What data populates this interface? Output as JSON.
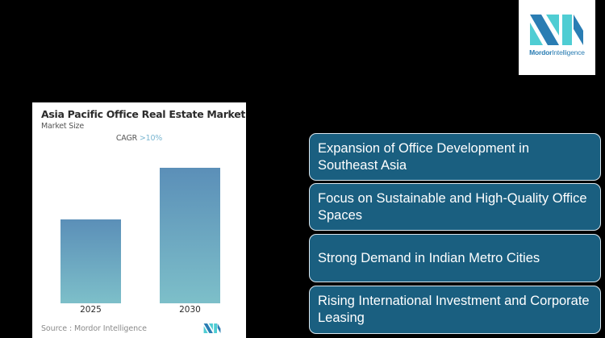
{
  "chart_card": {
    "title": "Asia Pacific Office Real Estate Market",
    "subtitle": "Market Size",
    "cagr_label": "CAGR",
    "cagr_value": ">10%",
    "source": "Source :  Mordor Intelligence"
  },
  "chart_data": {
    "type": "bar",
    "title": "Asia Pacific Office Real Estate Market",
    "subtitle": "Market Size",
    "annotation": "CAGR >10%",
    "categories": [
      "2025",
      "2030"
    ],
    "values": [
      62,
      100
    ],
    "value_note": "relative bar heights (no axis shown)",
    "xlabel": "",
    "ylabel": "",
    "grid": false,
    "legend": "none",
    "colors": {
      "bar_top": "#5b8fb8",
      "bar_bottom": "#7dbfc9"
    }
  },
  "logo": {
    "brand_bold": "Mordor",
    "brand_rest": "Intelligence",
    "colors": {
      "dark": "#2a7db3",
      "light": "#4fcdd3"
    }
  },
  "drivers": [
    {
      "label": "Expansion of Office Development in Southeast Asia"
    },
    {
      "label": "Focus on Sustainable and High-Quality Office Spaces"
    },
    {
      "label": "Strong Demand in Indian Metro Cities"
    },
    {
      "label": "Rising International Investment and Corporate Leasing"
    }
  ],
  "colors": {
    "background": "#000000",
    "driver_fill": "#1a5f80",
    "driver_border": "#d9e6ee",
    "cagr_accent": "#7ab6d1"
  }
}
